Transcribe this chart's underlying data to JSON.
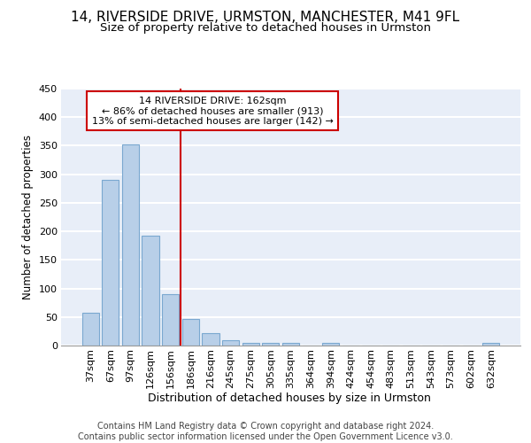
{
  "title1": "14, RIVERSIDE DRIVE, URMSTON, MANCHESTER, M41 9FL",
  "title2": "Size of property relative to detached houses in Urmston",
  "xlabel": "Distribution of detached houses by size in Urmston",
  "ylabel": "Number of detached properties",
  "categories": [
    "37sqm",
    "67sqm",
    "97sqm",
    "126sqm",
    "156sqm",
    "186sqm",
    "216sqm",
    "245sqm",
    "275sqm",
    "305sqm",
    "335sqm",
    "364sqm",
    "394sqm",
    "424sqm",
    "454sqm",
    "483sqm",
    "513sqm",
    "543sqm",
    "573sqm",
    "602sqm",
    "632sqm"
  ],
  "values": [
    57,
    290,
    353,
    192,
    90,
    46,
    22,
    10,
    5,
    5,
    5,
    0,
    5,
    0,
    0,
    0,
    0,
    0,
    0,
    0,
    5
  ],
  "bar_color": "#b8cfe8",
  "bar_edge_color": "#7aa8d0",
  "vline_color": "#cc0000",
  "box_color": "#cc0000",
  "marker_label": "14 RIVERSIDE DRIVE: 162sqm",
  "annotation_line1": "← 86% of detached houses are smaller (913)",
  "annotation_line2": "13% of semi-detached houses are larger (142) →",
  "ylim": [
    0,
    450
  ],
  "yticks": [
    0,
    50,
    100,
    150,
    200,
    250,
    300,
    350,
    400,
    450
  ],
  "bg_color": "#e8eef8",
  "grid_color": "#ffffff",
  "title1_fontsize": 11,
  "title2_fontsize": 9.5,
  "xlabel_fontsize": 9,
  "ylabel_fontsize": 8.5,
  "tick_fontsize": 8,
  "annot_fontsize": 8,
  "footnote_fontsize": 7,
  "footnote": "Contains HM Land Registry data © Crown copyright and database right 2024.\nContains public sector information licensed under the Open Government Licence v3.0."
}
